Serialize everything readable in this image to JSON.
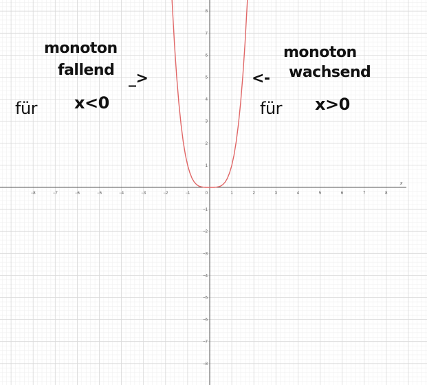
{
  "chart_data": {
    "type": "line",
    "title": "",
    "xlabel": "x",
    "ylabel": "",
    "xlim": [
      -8.5,
      8.5
    ],
    "ylim": [
      -8.5,
      8.5
    ],
    "x_ticks": [
      -8,
      -7,
      -6,
      -5,
      -4,
      -3,
      -2,
      -1,
      1,
      2,
      3,
      4,
      5,
      6,
      7,
      8
    ],
    "y_ticks": [
      -8,
      -7,
      -6,
      -5,
      -4,
      -3,
      -2,
      -1,
      1,
      2,
      3,
      4,
      5,
      6,
      7,
      8
    ],
    "origin_label": "0",
    "grid": true,
    "series": [
      {
        "color": "#e06666",
        "x": [
          -1.78,
          -1.7,
          -1.6,
          -1.5,
          -1.4,
          -1.3,
          -1.2,
          -1.1,
          -1.0,
          -0.9,
          -0.8,
          -0.7,
          -0.6,
          -0.5,
          -0.4,
          -0.3,
          -0.2,
          -0.1,
          0,
          0.1,
          0.2,
          0.3,
          0.4,
          0.5,
          0.6,
          0.7,
          0.8,
          0.9,
          1.0,
          1.1,
          1.2,
          1.3,
          1.4,
          1.5,
          1.6,
          1.7,
          1.78
        ],
        "y": [
          10.04,
          8.35,
          6.55,
          5.06,
          3.84,
          2.86,
          2.07,
          1.46,
          1.0,
          0.66,
          0.41,
          0.24,
          0.13,
          0.06,
          0.03,
          0.01,
          0.0,
          0.0,
          0,
          0.0,
          0.0,
          0.01,
          0.03,
          0.06,
          0.13,
          0.24,
          0.41,
          0.66,
          1.0,
          1.46,
          2.07,
          2.86,
          3.84,
          5.06,
          6.55,
          8.35,
          10.04
        ]
      }
    ],
    "annotations": {
      "left_line1": "monoton",
      "left_line2": "fallend",
      "left_arrow": "_>",
      "left_fuer": "für",
      "left_condition": "x<0",
      "right_line1": "monoton",
      "right_arrow": "<-",
      "right_line2": "wachsend",
      "right_fuer": "für",
      "right_condition": "x>0"
    }
  }
}
